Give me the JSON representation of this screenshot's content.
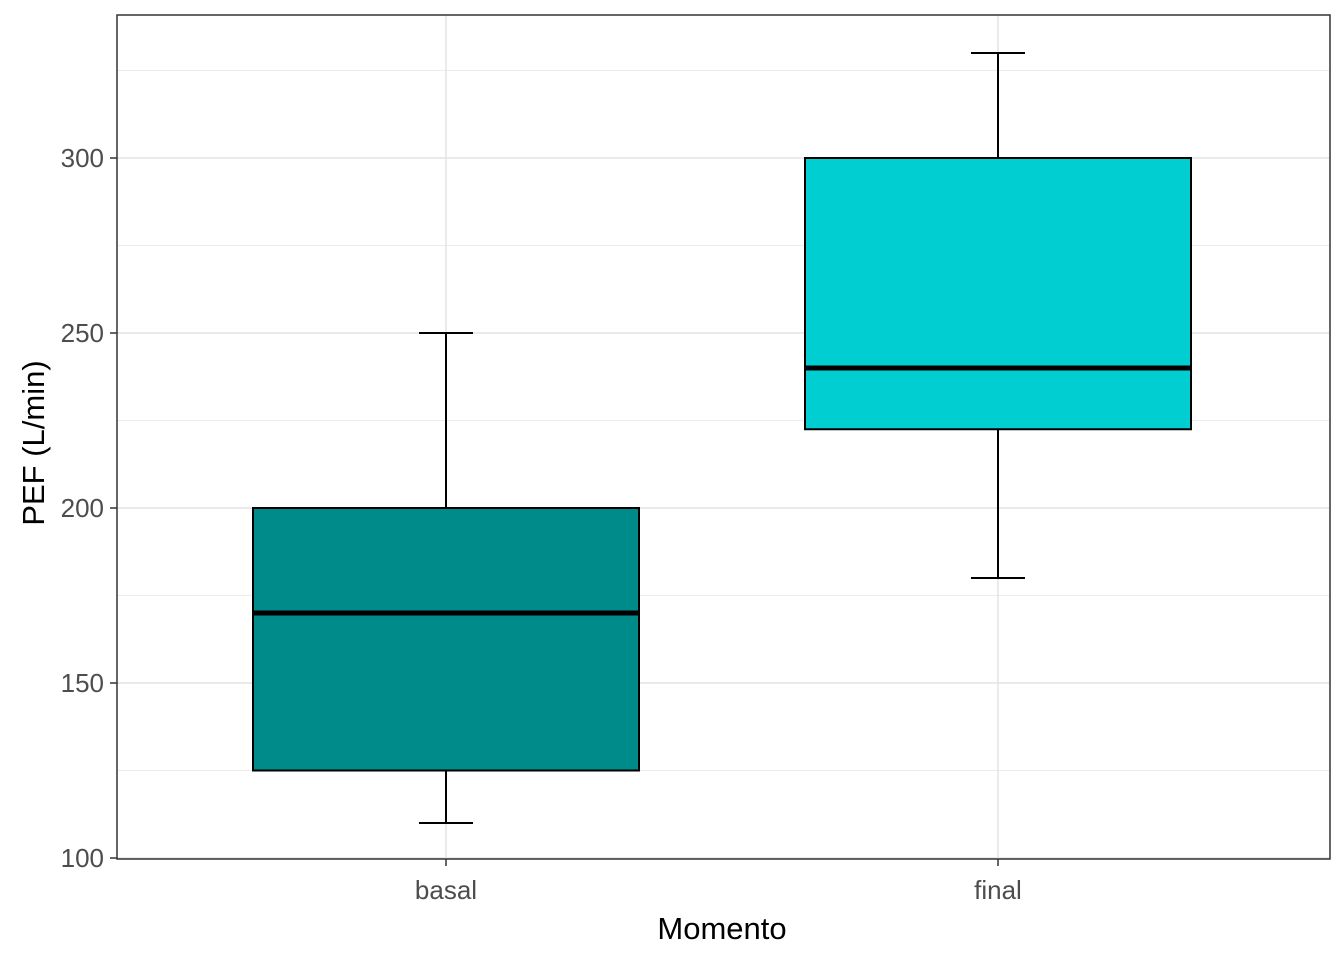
{
  "chart_data": {
    "type": "boxplot",
    "title": "",
    "xlabel": "Momento",
    "ylabel": "PEF (L/min)",
    "ylim": [
      100,
      335
    ],
    "yticks": [
      100,
      150,
      200,
      250,
      300
    ],
    "y_minor_ticks": [
      125,
      175,
      225,
      275,
      325
    ],
    "categories": [
      "basal",
      "final"
    ],
    "grid": true,
    "legend": "none",
    "boxes": [
      {
        "category": "basal",
        "whisker_low": 110,
        "q1": 125,
        "median": 170,
        "q3": 200,
        "whisker_high": 250,
        "color": "#008b8b"
      },
      {
        "category": "final",
        "whisker_low": 180,
        "q1": 222.5,
        "median": 240,
        "q3": 300,
        "whisker_high": 330,
        "color": "#00ced1"
      }
    ]
  }
}
